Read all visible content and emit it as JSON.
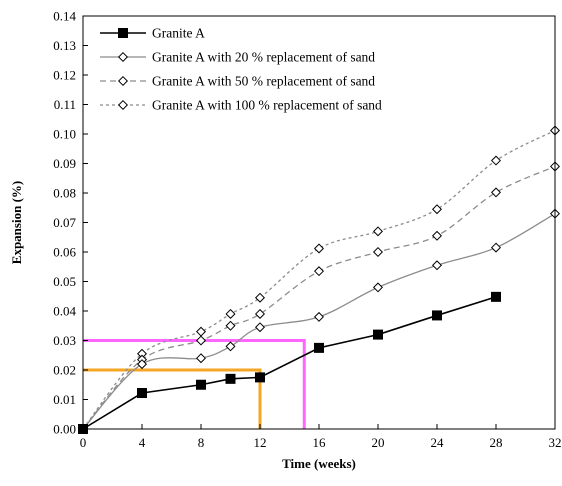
{
  "chart_data": {
    "type": "line",
    "xlabel": "Time (weeks)",
    "ylabel": "Expansion (%)",
    "xlim": [
      0,
      32
    ],
    "ylim": [
      0,
      0.14
    ],
    "xticks": [
      "0",
      "4",
      "8",
      "12",
      "16",
      "20",
      "24",
      "28",
      "32"
    ],
    "yticks": [
      "0.00",
      "0.01",
      "0.02",
      "0.03",
      "0.04",
      "0.05",
      "0.06",
      "0.07",
      "0.08",
      "0.09",
      "0.10",
      "0.11",
      "0.12",
      "0.13",
      "0.14"
    ],
    "grid": false,
    "legend": "top-left",
    "series": [
      {
        "name": "Granite A",
        "color": "#000000",
        "dash": "",
        "marker": "filled-square",
        "points": [
          [
            0,
            0.0
          ],
          [
            4,
            0.0122
          ],
          [
            8,
            0.015
          ],
          [
            10,
            0.017
          ],
          [
            12,
            0.0175
          ],
          [
            16,
            0.0275
          ],
          [
            20,
            0.032
          ],
          [
            24,
            0.0385
          ],
          [
            28,
            0.0448
          ]
        ]
      },
      {
        "name": "Granite A with 20 % replacement of sand",
        "color": "#8c8c8c",
        "dash": "",
        "marker": "open-diamond",
        "points": [
          [
            0,
            0.0
          ],
          [
            4,
            0.022
          ],
          [
            8,
            0.024
          ],
          [
            10,
            0.028
          ],
          [
            12,
            0.0345
          ],
          [
            16,
            0.038
          ],
          [
            20,
            0.048
          ],
          [
            24,
            0.0555
          ],
          [
            28,
            0.0615
          ],
          [
            32,
            0.073
          ]
        ]
      },
      {
        "name": "Granite A with 50 % replacement of sand",
        "color": "#8c8c8c",
        "dash": "6 4",
        "marker": "open-diamond",
        "points": [
          [
            0,
            0.0
          ],
          [
            4,
            0.0235
          ],
          [
            8,
            0.03
          ],
          [
            10,
            0.035
          ],
          [
            12,
            0.039
          ],
          [
            16,
            0.0535
          ],
          [
            20,
            0.06
          ],
          [
            24,
            0.0655
          ],
          [
            28,
            0.0802
          ],
          [
            32,
            0.089
          ]
        ]
      },
      {
        "name": "Granite A with 100 % replacement of sand",
        "color": "#8c8c8c",
        "dash": "3 3",
        "marker": "open-diamond",
        "points": [
          [
            0,
            0.0
          ],
          [
            4,
            0.0255
          ],
          [
            8,
            0.033
          ],
          [
            10,
            0.039
          ],
          [
            12,
            0.0445
          ],
          [
            16,
            0.0612
          ],
          [
            20,
            0.067
          ],
          [
            24,
            0.0745
          ],
          [
            28,
            0.091
          ],
          [
            32,
            0.1012
          ]
        ]
      }
    ],
    "annotations": [
      {
        "color": "#ff66ff",
        "y": 0.03,
        "x_end": 15
      },
      {
        "color": "#f5a623",
        "y": 0.02,
        "x_end": 12
      }
    ]
  }
}
